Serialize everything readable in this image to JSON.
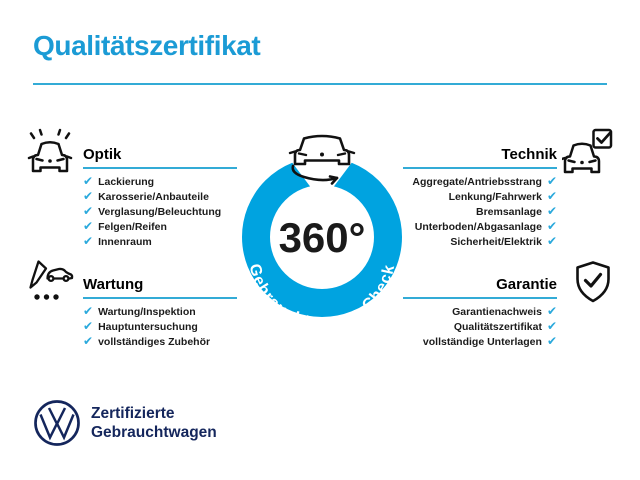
{
  "title": "Qualitätszertifikat",
  "checkmark": "✔",
  "colors": {
    "accent": "#00A3E0",
    "title_blue": "#1B9BD5",
    "underline_blue": "#33ABD6",
    "check_blue": "#2AA9DC",
    "navy": "#14265C",
    "text_dark": "#1B1B1B"
  },
  "center": {
    "degree": "360°",
    "ring_label": "Gebrauchtwagen-Check"
  },
  "sections": {
    "optik": {
      "title": "Optik",
      "icon": "car-shine-icon",
      "items": [
        "Lackierung",
        "Karosserie/Anbauteile",
        "Verglasung/Beleuchtung",
        "Felgen/Reifen",
        "Innenraum"
      ]
    },
    "technik": {
      "title": "Technik",
      "icon": "car-checkbox-icon",
      "items": [
        "Aggregate/Antriebsstrang",
        "Lenkung/Fahrwerk",
        "Bremsanlage",
        "Unterboden/Abgasanlage",
        "Sicherheit/Elektrik"
      ]
    },
    "wartung": {
      "title": "Wartung",
      "icon": "service-checklist-icon",
      "items": [
        "Wartung/Inspektion",
        "Hauptuntersuchung",
        "vollständiges Zubehör"
      ]
    },
    "garantie": {
      "title": "Garantie",
      "icon": "shield-check-icon",
      "items": [
        "Garantienachweis",
        "Qualitätszertifikat",
        "vollständige Unterlagen"
      ]
    }
  },
  "footer": {
    "brand_line1": "Zertifizierte",
    "brand_line2": "Gebrauchtwagen"
  }
}
